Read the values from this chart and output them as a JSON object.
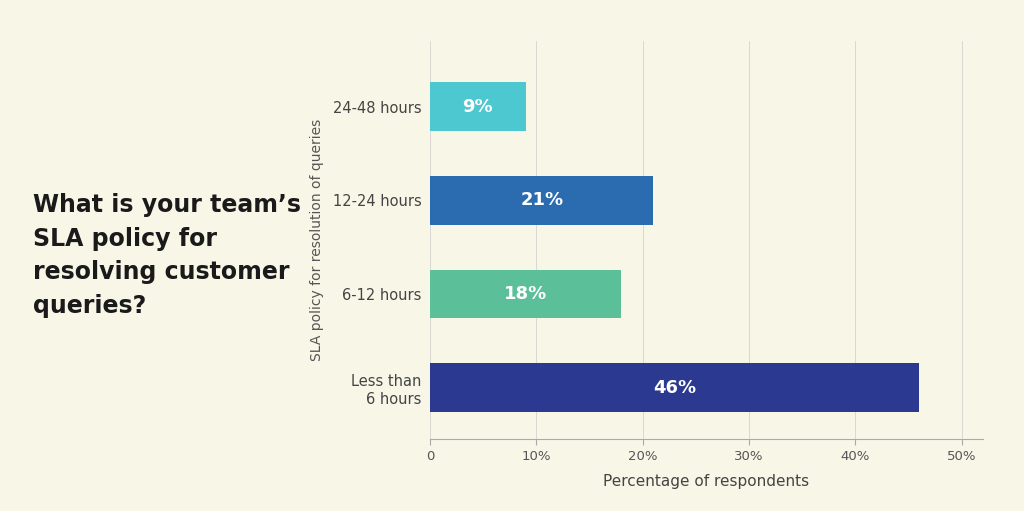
{
  "categories": [
    "Less than\n6 hours",
    "6-12 hours",
    "12-24 hours",
    "24-48 hours"
  ],
  "values": [
    46,
    18,
    21,
    9
  ],
  "bar_colors": [
    "#2b3990",
    "#5bbf9a",
    "#2b6cb0",
    "#4dc8d0"
  ],
  "bar_labels": [
    "46%",
    "18%",
    "21%",
    "9%"
  ],
  "xlabel": "Percentage of respondents",
  "ylabel": "SLA policy for resolution of queries",
  "xlim": [
    0,
    52
  ],
  "xticks": [
    0,
    10,
    20,
    30,
    40,
    50
  ],
  "xtick_labels": [
    "0",
    "10%",
    "20%",
    "30%",
    "40%",
    "50%"
  ],
  "background_color": "#f7f6e7",
  "title_text": "What is your team’s\nSLA policy for\nresolving customer\nqueries?",
  "title_fontsize": 17,
  "label_fontsize": 10.5,
  "tick_fontsize": 9.5,
  "bar_label_fontsize": 13,
  "ylabel_fontsize": 10,
  "xlabel_fontsize": 11
}
